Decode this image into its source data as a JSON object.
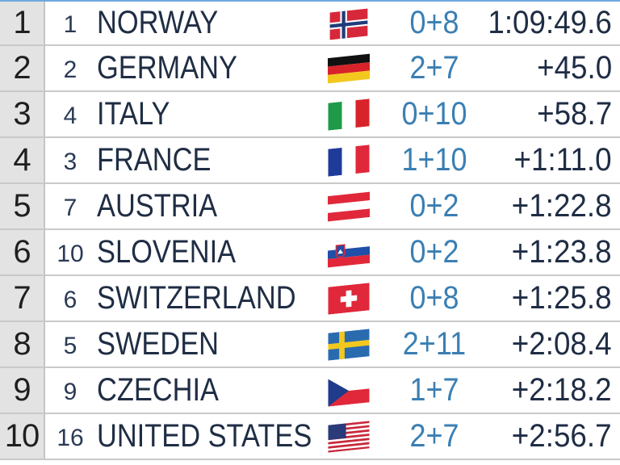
{
  "results": [
    {
      "rank": "1",
      "bib": "1",
      "nation": "NORWAY",
      "flag": "norway-flag-icon",
      "penalties": "0+8",
      "time": "1:09:49.6"
    },
    {
      "rank": "2",
      "bib": "2",
      "nation": "GERMANY",
      "flag": "germany-flag-icon",
      "penalties": "2+7",
      "time": "+45.0"
    },
    {
      "rank": "3",
      "bib": "4",
      "nation": "ITALY",
      "flag": "italy-flag-icon",
      "penalties": "0+10",
      "time": "+58.7"
    },
    {
      "rank": "4",
      "bib": "3",
      "nation": "FRANCE",
      "flag": "france-flag-icon",
      "penalties": "1+10",
      "time": "+1:11.0"
    },
    {
      "rank": "5",
      "bib": "7",
      "nation": "AUSTRIA",
      "flag": "austria-flag-icon",
      "penalties": "0+2",
      "time": "+1:22.8"
    },
    {
      "rank": "6",
      "bib": "10",
      "nation": "SLOVENIA",
      "flag": "slovenia-flag-icon",
      "penalties": "0+2",
      "time": "+1:23.8"
    },
    {
      "rank": "7",
      "bib": "6",
      "nation": "SWITZERLAND",
      "flag": "switzerland-flag-icon",
      "penalties": "0+8",
      "time": "+1:25.8"
    },
    {
      "rank": "8",
      "bib": "5",
      "nation": "SWEDEN",
      "flag": "sweden-flag-icon",
      "penalties": "2+11",
      "time": "+2:08.4"
    },
    {
      "rank": "9",
      "bib": "9",
      "nation": "CZECHIA",
      "flag": "czechia-flag-icon",
      "penalties": "1+7",
      "time": "+2:18.2"
    },
    {
      "rank": "10",
      "bib": "16",
      "nation": "UNITED STATES",
      "flag": "usa-flag-icon",
      "penalties": "2+7",
      "time": "+2:56.7"
    }
  ],
  "colors": {
    "penalty_text": "#3a7fb3",
    "row_divider": "#c9c9c9",
    "rank_bg": "#e3e3e3"
  }
}
